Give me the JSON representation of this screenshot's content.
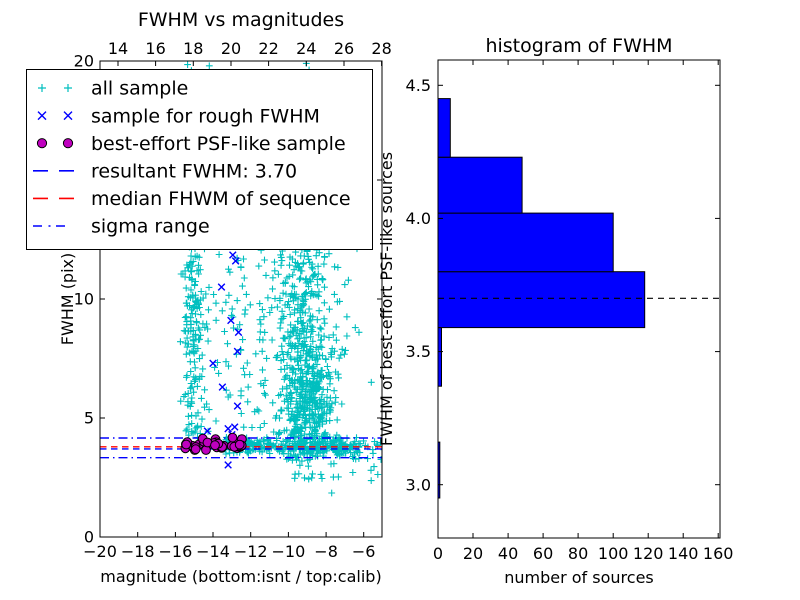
{
  "figure": {
    "background": "#ffffff"
  },
  "colors": {
    "all_sample": "#00bfbf",
    "rough_sample": "#0000ff",
    "psf_sample_fill": "#bf00bf",
    "psf_sample_edge": "#000000",
    "resultant_line": "#0000ff",
    "median_line": "#ff0000",
    "sigma_line": "#0000ff",
    "hist_bar_fill": "#0000ff",
    "hist_bar_edge": "#000000",
    "hist_dashed_line": "#000000",
    "frame": "#000000"
  },
  "chart_data": [
    {
      "type": "scatter",
      "title": "FWHM vs magnitudes",
      "xlabel": "magnitude (bottom:isnt / top:calib)",
      "ylabel": "FWHM (pix)",
      "xlim": [
        -20,
        -5.03
      ],
      "ylim": [
        0,
        20
      ],
      "x_ticks_bottom": [
        -20,
        -18,
        -16,
        -14,
        -12,
        -10,
        -8,
        -6
      ],
      "y_ticks": [
        0,
        5,
        10,
        15,
        20
      ],
      "top_axis": {
        "lim": [
          13.045,
          28.02
        ],
        "ticks": [
          14,
          16,
          18,
          20,
          22,
          24,
          26,
          28
        ]
      },
      "grid": false,
      "legend_position": "upper-left",
      "legend": [
        {
          "label": "all sample",
          "marker": "plus",
          "color": "#00bfbf"
        },
        {
          "label": "sample for rough FWHM",
          "marker": "x",
          "color": "#0000ff"
        },
        {
          "label": "best-effort PSF-like sample",
          "marker": "circle",
          "color": "#bf00bf"
        },
        {
          "label": "resultant FWHM: 3.70",
          "marker": "dashed-line",
          "color": "#0000ff"
        },
        {
          "label": "median FHWM of sequence",
          "marker": "dashed-line",
          "color": "#ff0000"
        },
        {
          "label": "sigma range",
          "marker": "dashdot-line",
          "color": "#0000ff"
        }
      ],
      "hlines": [
        {
          "name": "sigma-range-upper",
          "y": 4.16,
          "color": "#0000ff",
          "style": "dashdot"
        },
        {
          "name": "median-fwhm",
          "y": 3.79,
          "color": "#ff0000",
          "style": "dashed"
        },
        {
          "name": "resultant-fwhm",
          "y": 3.7,
          "color": "#0000ff",
          "style": "dashed"
        },
        {
          "name": "sigma-range-lower",
          "y": 3.33,
          "color": "#0000ff",
          "style": "dashdot"
        }
      ],
      "series": [
        {
          "name": "all sample",
          "marker": "plus",
          "color": "#00bfbf",
          "seed": 42,
          "clusters": [
            {
              "n": 170,
              "x": {
                "dist": "gauss",
                "a": -15.05,
                "b": 0.3,
                "min": -15.8,
                "max": -14.2
              },
              "y": {
                "dist": "uniform",
                "a": 3.9,
                "b": 12.6
              }
            },
            {
              "n": 12,
              "x": {
                "dist": "gauss",
                "a": -15.0,
                "b": 0.35,
                "min": -15.6,
                "max": -14.3
              },
              "y": {
                "dist": "uniform",
                "a": 12.6,
                "b": 15.5
              }
            },
            {
              "n": 85,
              "x": {
                "dist": "uniform",
                "a": -14.4,
                "b": -11.2
              },
              "y": {
                "dist": "uniform",
                "a": 4.6,
                "b": 12.5
              }
            },
            {
              "n": 280,
              "x": {
                "dist": "gauss",
                "a": -9.2,
                "b": 1.05,
                "min": -11.6,
                "max": -6.2
              },
              "y": {
                "dist": "uniform",
                "a": 7.4,
                "b": 12.9
              }
            },
            {
              "n": 430,
              "x": {
                "dist": "gauss",
                "a": -9.0,
                "b": 0.75,
                "min": -11.2,
                "max": -6.6
              },
              "y": {
                "dist": "gauss",
                "a": 5.6,
                "b": 1.35,
                "min": 3.5,
                "max": 8.4
              }
            },
            {
              "n": 120,
              "x": {
                "dist": "uniform",
                "a": -13.4,
                "b": -10.8
              },
              "y": {
                "dist": "gauss",
                "a": 3.85,
                "b": 0.18,
                "min": 3.3,
                "max": 4.4
              }
            },
            {
              "n": 230,
              "x": {
                "dist": "gauss",
                "a": -8.4,
                "b": 1.6,
                "min": -10.8,
                "max": -4.9
              },
              "y": {
                "dist": "gauss",
                "a": 3.78,
                "b": 0.24,
                "min": 2.85,
                "max": 4.5
              }
            },
            {
              "n": 24,
              "x": {
                "dist": "uniform",
                "a": -9.9,
                "b": -5.0
              },
              "y": {
                "dist": "uniform",
                "a": 2.25,
                "b": 3.3
              }
            }
          ],
          "points": [
            [
              -15.35,
              19.85
            ],
            [
              -15.15,
              19.6
            ],
            [
              -14.2,
              19.8
            ],
            [
              -9.05,
              19.9
            ],
            [
              -8.9,
              19.62
            ],
            [
              -8.75,
              19.4
            ],
            [
              -7.7,
              1.85
            ],
            [
              -6.45,
              8.8
            ],
            [
              -6.25,
              8.6
            ],
            [
              -5.6,
              6.5
            ]
          ]
        },
        {
          "name": "sample for rough FWHM",
          "marker": "x",
          "color": "#0000ff",
          "points": [
            [
              -12.95,
              11.85
            ],
            [
              -12.8,
              11.6
            ],
            [
              -13.55,
              10.5
            ],
            [
              -13.05,
              9.1
            ],
            [
              -12.65,
              8.6
            ],
            [
              -12.7,
              7.8
            ],
            [
              -14.0,
              7.3
            ],
            [
              -13.5,
              6.3
            ],
            [
              -12.7,
              5.5
            ],
            [
              -14.3,
              4.45
            ],
            [
              -13.2,
              4.55
            ],
            [
              -12.85,
              4.62
            ],
            [
              -13.0,
              4.3
            ],
            [
              -13.2,
              3.03
            ]
          ]
        },
        {
          "name": "best-effort PSF-like sample",
          "marker": "circle",
          "color": "#bf00bf",
          "edge_color": "#000000",
          "seed": 7,
          "clusters": [
            {
              "n": 42,
              "x": {
                "dist": "uniform",
                "a": -15.5,
                "b": -12.45
              },
              "y": {
                "dist": "gauss",
                "a": 3.86,
                "b": 0.16,
                "min": 3.55,
                "max": 4.18
              }
            }
          ],
          "points": []
        }
      ]
    },
    {
      "type": "bar",
      "orientation": "horizontal",
      "title": "histogram of FWHM",
      "xlabel": "number of sources",
      "ylabel": "FWHM of best-effort PSF-like sources",
      "xlim": [
        0,
        161
      ],
      "ylim": [
        2.8,
        4.595
      ],
      "x_ticks": [
        0,
        20,
        40,
        60,
        80,
        100,
        120,
        140,
        160
      ],
      "y_ticks": [
        3.0,
        3.5,
        4.0,
        4.5
      ],
      "grid": false,
      "bin_edges": [
        2.95,
        3.16,
        3.37,
        3.59,
        3.8,
        4.02,
        4.23,
        4.45
      ],
      "counts": [
        1,
        0,
        2,
        118,
        100,
        48,
        7
      ],
      "bar_color": "#0000ff",
      "bar_edge_color": "#000000",
      "dashed_line": {
        "name": "resultant-fwhm",
        "y": 3.7,
        "color": "#000000",
        "style": "dashed"
      }
    }
  ]
}
